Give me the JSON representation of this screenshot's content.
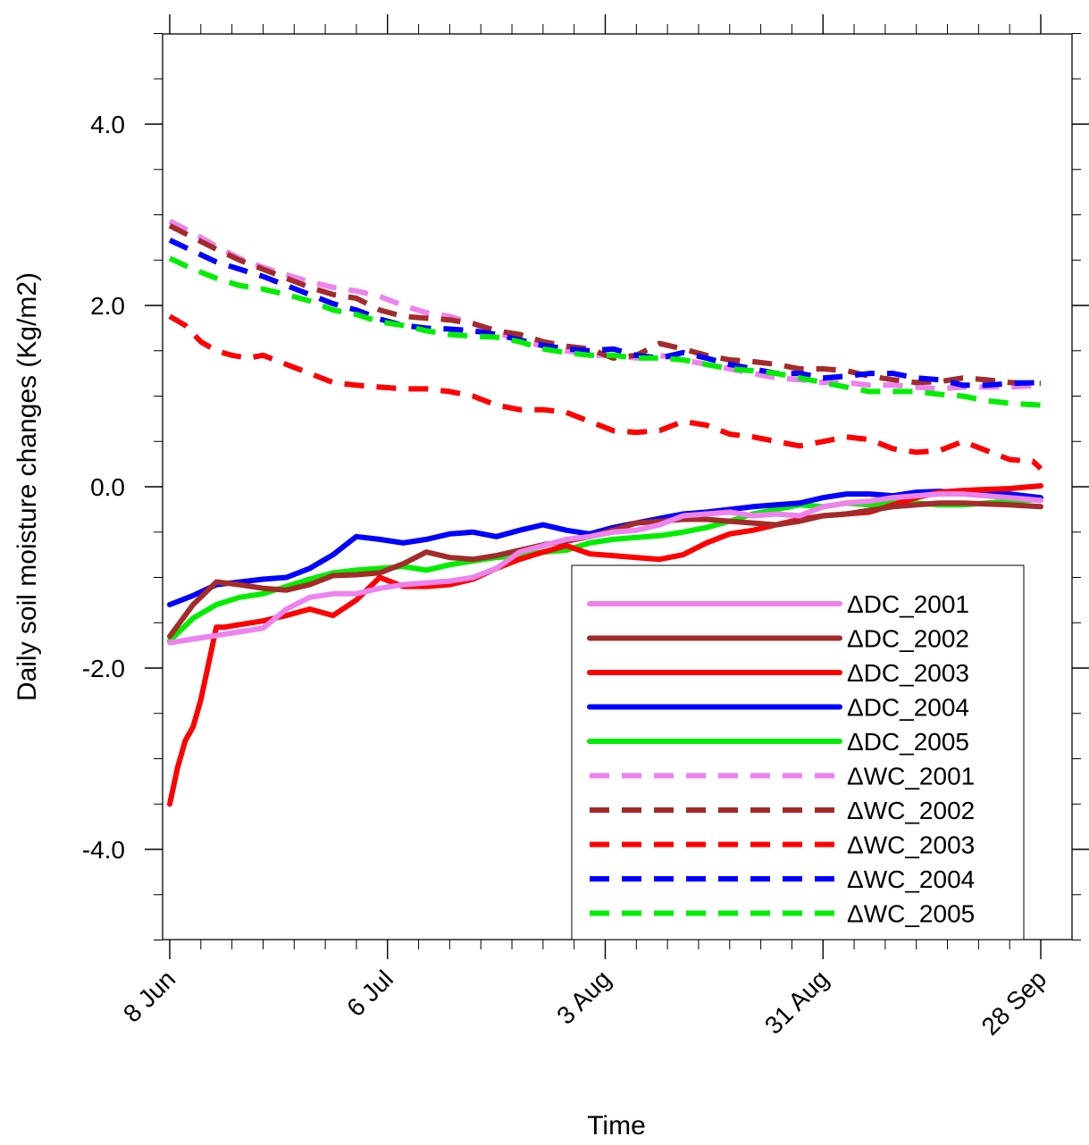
{
  "chart_data": {
    "type": "line",
    "xlabel": "Time",
    "ylabel": "Daily soil moisture changes (Kg/m2)",
    "xlim": [
      0,
      114
    ],
    "ylim": [
      -5.0,
      5.0
    ],
    "x_ticks": [
      {
        "day": 0,
        "label": "8 Jun"
      },
      {
        "day": 28,
        "label": "6 Jul"
      },
      {
        "day": 56,
        "label": "3 Aug"
      },
      {
        "day": 84,
        "label": "31 Aug"
      },
      {
        "day": 112,
        "label": "28 Sep"
      }
    ],
    "y_ticks": [
      {
        "value": 4.0,
        "label": "4.0"
      },
      {
        "value": 2.0,
        "label": "2.0"
      },
      {
        "value": 0.0,
        "label": "0.0"
      },
      {
        "value": -2.0,
        "label": "-2.0"
      },
      {
        "value": -4.0,
        "label": "-4.0"
      }
    ],
    "x_unit": "days after 8 Jun",
    "legend_position": "lower-right",
    "series": [
      {
        "name": "ΔDC_2001",
        "color": "#ee82ee",
        "dash": false,
        "x": [
          0,
          3,
          6,
          9,
          12,
          15,
          18,
          21,
          24,
          27,
          30,
          33,
          36,
          39,
          42,
          45,
          48,
          51,
          54,
          57,
          60,
          63,
          66,
          69,
          72,
          75,
          78,
          81,
          84,
          87,
          90,
          93,
          96,
          99,
          102,
          105,
          108,
          112
        ],
        "y": [
          -1.72,
          -1.68,
          -1.64,
          -1.6,
          -1.56,
          -1.35,
          -1.22,
          -1.18,
          -1.18,
          -1.12,
          -1.08,
          -1.06,
          -1.04,
          -1.0,
          -0.9,
          -0.72,
          -0.65,
          -0.58,
          -0.55,
          -0.5,
          -0.48,
          -0.42,
          -0.32,
          -0.3,
          -0.28,
          -0.32,
          -0.3,
          -0.32,
          -0.22,
          -0.18,
          -0.16,
          -0.12,
          -0.1,
          -0.08,
          -0.08,
          -0.1,
          -0.12,
          -0.15
        ]
      },
      {
        "name": "ΔDC_2002",
        "color": "#a52a2a",
        "dash": false,
        "x": [
          0,
          3,
          6,
          9,
          12,
          15,
          18,
          21,
          24,
          27,
          30,
          33,
          36,
          39,
          42,
          45,
          48,
          51,
          54,
          57,
          60,
          63,
          66,
          69,
          72,
          75,
          78,
          81,
          84,
          87,
          90,
          93,
          96,
          99,
          102,
          105,
          108,
          112
        ],
        "y": [
          -1.65,
          -1.3,
          -1.05,
          -1.08,
          -1.12,
          -1.14,
          -1.08,
          -0.98,
          -0.97,
          -0.95,
          -0.85,
          -0.72,
          -0.78,
          -0.8,
          -0.76,
          -0.7,
          -0.64,
          -0.6,
          -0.55,
          -0.48,
          -0.4,
          -0.38,
          -0.36,
          -0.36,
          -0.38,
          -0.4,
          -0.42,
          -0.38,
          -0.32,
          -0.3,
          -0.26,
          -0.22,
          -0.2,
          -0.18,
          -0.18,
          -0.19,
          -0.2,
          -0.22
        ]
      },
      {
        "name": "ΔDC_2003",
        "color": "#ff0000",
        "dash": false,
        "x": [
          0,
          1,
          2,
          3,
          4,
          5,
          6,
          7,
          9,
          12,
          15,
          18,
          21,
          24,
          27,
          30,
          33,
          36,
          39,
          42,
          45,
          48,
          51,
          54,
          57,
          60,
          63,
          66,
          69,
          72,
          75,
          78,
          81,
          84,
          87,
          90,
          93,
          96,
          99,
          102,
          105,
          108,
          112
        ],
        "y": [
          -3.5,
          -3.1,
          -2.8,
          -2.65,
          -2.35,
          -1.95,
          -1.55,
          -1.55,
          -1.52,
          -1.48,
          -1.42,
          -1.35,
          -1.42,
          -1.25,
          -1.0,
          -1.1,
          -1.1,
          -1.08,
          -1.02,
          -0.9,
          -0.8,
          -0.72,
          -0.65,
          -0.74,
          -0.76,
          -0.78,
          -0.8,
          -0.75,
          -0.62,
          -0.52,
          -0.48,
          -0.42,
          -0.36,
          -0.32,
          -0.3,
          -0.28,
          -0.2,
          -0.12,
          -0.06,
          -0.04,
          -0.03,
          -0.02,
          0.01
        ]
      },
      {
        "name": "ΔDC_2004",
        "color": "#0000ff",
        "dash": false,
        "x": [
          0,
          3,
          6,
          9,
          12,
          15,
          18,
          21,
          24,
          27,
          30,
          33,
          36,
          39,
          42,
          45,
          48,
          51,
          54,
          57,
          60,
          63,
          66,
          69,
          72,
          75,
          78,
          81,
          84,
          87,
          90,
          93,
          96,
          99,
          102,
          105,
          108,
          112
        ],
        "y": [
          -1.3,
          -1.2,
          -1.08,
          -1.05,
          -1.02,
          -1.0,
          -0.9,
          -0.75,
          -0.55,
          -0.58,
          -0.62,
          -0.58,
          -0.52,
          -0.5,
          -0.55,
          -0.48,
          -0.42,
          -0.48,
          -0.52,
          -0.45,
          -0.4,
          -0.35,
          -0.3,
          -0.28,
          -0.25,
          -0.22,
          -0.2,
          -0.18,
          -0.12,
          -0.08,
          -0.08,
          -0.1,
          -0.06,
          -0.05,
          -0.07,
          -0.08,
          -0.08,
          -0.12
        ]
      },
      {
        "name": "ΔDC_2005",
        "color": "#00ee00",
        "dash": false,
        "x": [
          0,
          3,
          6,
          9,
          12,
          15,
          18,
          21,
          24,
          27,
          30,
          33,
          36,
          39,
          42,
          45,
          48,
          51,
          54,
          57,
          60,
          63,
          66,
          69,
          72,
          75,
          78,
          81,
          84,
          87,
          90,
          93,
          96,
          99,
          102,
          105,
          108,
          112
        ],
        "y": [
          -1.7,
          -1.45,
          -1.3,
          -1.22,
          -1.18,
          -1.1,
          -1.02,
          -0.95,
          -0.92,
          -0.9,
          -0.88,
          -0.92,
          -0.86,
          -0.82,
          -0.78,
          -0.76,
          -0.72,
          -0.7,
          -0.62,
          -0.58,
          -0.56,
          -0.54,
          -0.5,
          -0.45,
          -0.38,
          -0.3,
          -0.25,
          -0.2,
          -0.22,
          -0.18,
          -0.2,
          -0.16,
          -0.18,
          -0.2,
          -0.2,
          -0.18,
          -0.16,
          -0.14
        ]
      },
      {
        "name": "ΔWC_2001",
        "color": "#ee82ee",
        "dash": true,
        "x": [
          0,
          3,
          6,
          9,
          12,
          15,
          18,
          21,
          24,
          27,
          30,
          33,
          36,
          39,
          42,
          45,
          48,
          51,
          54,
          57,
          60,
          63,
          66,
          69,
          72,
          75,
          78,
          81,
          84,
          87,
          90,
          93,
          96,
          99,
          102,
          105,
          108,
          112
        ],
        "y": [
          2.93,
          2.8,
          2.65,
          2.52,
          2.42,
          2.34,
          2.26,
          2.2,
          2.16,
          2.1,
          2.0,
          1.92,
          1.88,
          1.8,
          1.7,
          1.62,
          1.55,
          1.5,
          1.45,
          1.45,
          1.42,
          1.45,
          1.4,
          1.35,
          1.3,
          1.25,
          1.2,
          1.18,
          1.15,
          1.15,
          1.12,
          1.12,
          1.1,
          1.08,
          1.1,
          1.1,
          1.1,
          1.12
        ]
      },
      {
        "name": "ΔWC_2002",
        "color": "#a52a2a",
        "dash": true,
        "x": [
          0,
          3,
          6,
          9,
          12,
          15,
          18,
          21,
          24,
          27,
          30,
          33,
          36,
          39,
          42,
          45,
          48,
          51,
          54,
          57,
          60,
          63,
          66,
          69,
          72,
          75,
          78,
          81,
          84,
          87,
          90,
          93,
          96,
          99,
          102,
          105,
          108,
          112
        ],
        "y": [
          2.88,
          2.75,
          2.62,
          2.5,
          2.4,
          2.3,
          2.2,
          2.12,
          2.08,
          1.95,
          1.88,
          1.86,
          1.84,
          1.8,
          1.72,
          1.68,
          1.6,
          1.55,
          1.52,
          1.42,
          1.45,
          1.58,
          1.52,
          1.45,
          1.4,
          1.38,
          1.35,
          1.3,
          1.3,
          1.28,
          1.22,
          1.18,
          1.15,
          1.16,
          1.2,
          1.18,
          1.15,
          1.14
        ]
      },
      {
        "name": "ΔWC_2003",
        "color": "#ff0000",
        "dash": true,
        "x": [
          0,
          2,
          4,
          6,
          8,
          10,
          12,
          15,
          18,
          21,
          24,
          27,
          30,
          33,
          36,
          39,
          42,
          45,
          48,
          51,
          54,
          57,
          60,
          63,
          66,
          69,
          72,
          75,
          78,
          81,
          84,
          87,
          90,
          93,
          96,
          99,
          102,
          105,
          108,
          111,
          112
        ],
        "y": [
          1.88,
          1.78,
          1.6,
          1.5,
          1.45,
          1.42,
          1.45,
          1.35,
          1.25,
          1.15,
          1.12,
          1.1,
          1.08,
          1.08,
          1.05,
          1.0,
          0.9,
          0.85,
          0.85,
          0.82,
          0.72,
          0.62,
          0.6,
          0.62,
          0.72,
          0.68,
          0.58,
          0.55,
          0.5,
          0.45,
          0.5,
          0.55,
          0.52,
          0.42,
          0.38,
          0.4,
          0.5,
          0.4,
          0.3,
          0.28,
          0.2
        ]
      },
      {
        "name": "ΔWC_2004",
        "color": "#0000ff",
        "dash": true,
        "x": [
          0,
          3,
          6,
          9,
          12,
          15,
          18,
          21,
          24,
          27,
          30,
          33,
          36,
          39,
          42,
          45,
          48,
          51,
          54,
          57,
          60,
          63,
          66,
          69,
          72,
          75,
          78,
          81,
          84,
          87,
          90,
          93,
          96,
          99,
          102,
          105,
          108,
          112
        ],
        "y": [
          2.72,
          2.6,
          2.48,
          2.4,
          2.32,
          2.22,
          2.12,
          2.02,
          1.95,
          1.85,
          1.78,
          1.75,
          1.74,
          1.72,
          1.68,
          1.62,
          1.56,
          1.52,
          1.5,
          1.52,
          1.45,
          1.42,
          1.48,
          1.42,
          1.35,
          1.3,
          1.25,
          1.25,
          1.2,
          1.22,
          1.25,
          1.25,
          1.2,
          1.18,
          1.12,
          1.12,
          1.14,
          1.15
        ]
      },
      {
        "name": "ΔWC_2005",
        "color": "#00ee00",
        "dash": true,
        "x": [
          0,
          3,
          6,
          9,
          12,
          15,
          18,
          21,
          24,
          27,
          30,
          33,
          36,
          39,
          42,
          45,
          48,
          51,
          54,
          57,
          60,
          63,
          66,
          69,
          72,
          75,
          78,
          81,
          84,
          87,
          90,
          93,
          96,
          99,
          102,
          105,
          108,
          112
        ],
        "y": [
          2.52,
          2.4,
          2.3,
          2.22,
          2.18,
          2.12,
          2.05,
          1.95,
          1.9,
          1.82,
          1.78,
          1.72,
          1.68,
          1.66,
          1.65,
          1.6,
          1.52,
          1.48,
          1.45,
          1.45,
          1.42,
          1.42,
          1.4,
          1.35,
          1.3,
          1.28,
          1.25,
          1.2,
          1.15,
          1.1,
          1.05,
          1.05,
          1.05,
          1.02,
          1.0,
          0.95,
          0.92,
          0.9
        ]
      }
    ]
  }
}
